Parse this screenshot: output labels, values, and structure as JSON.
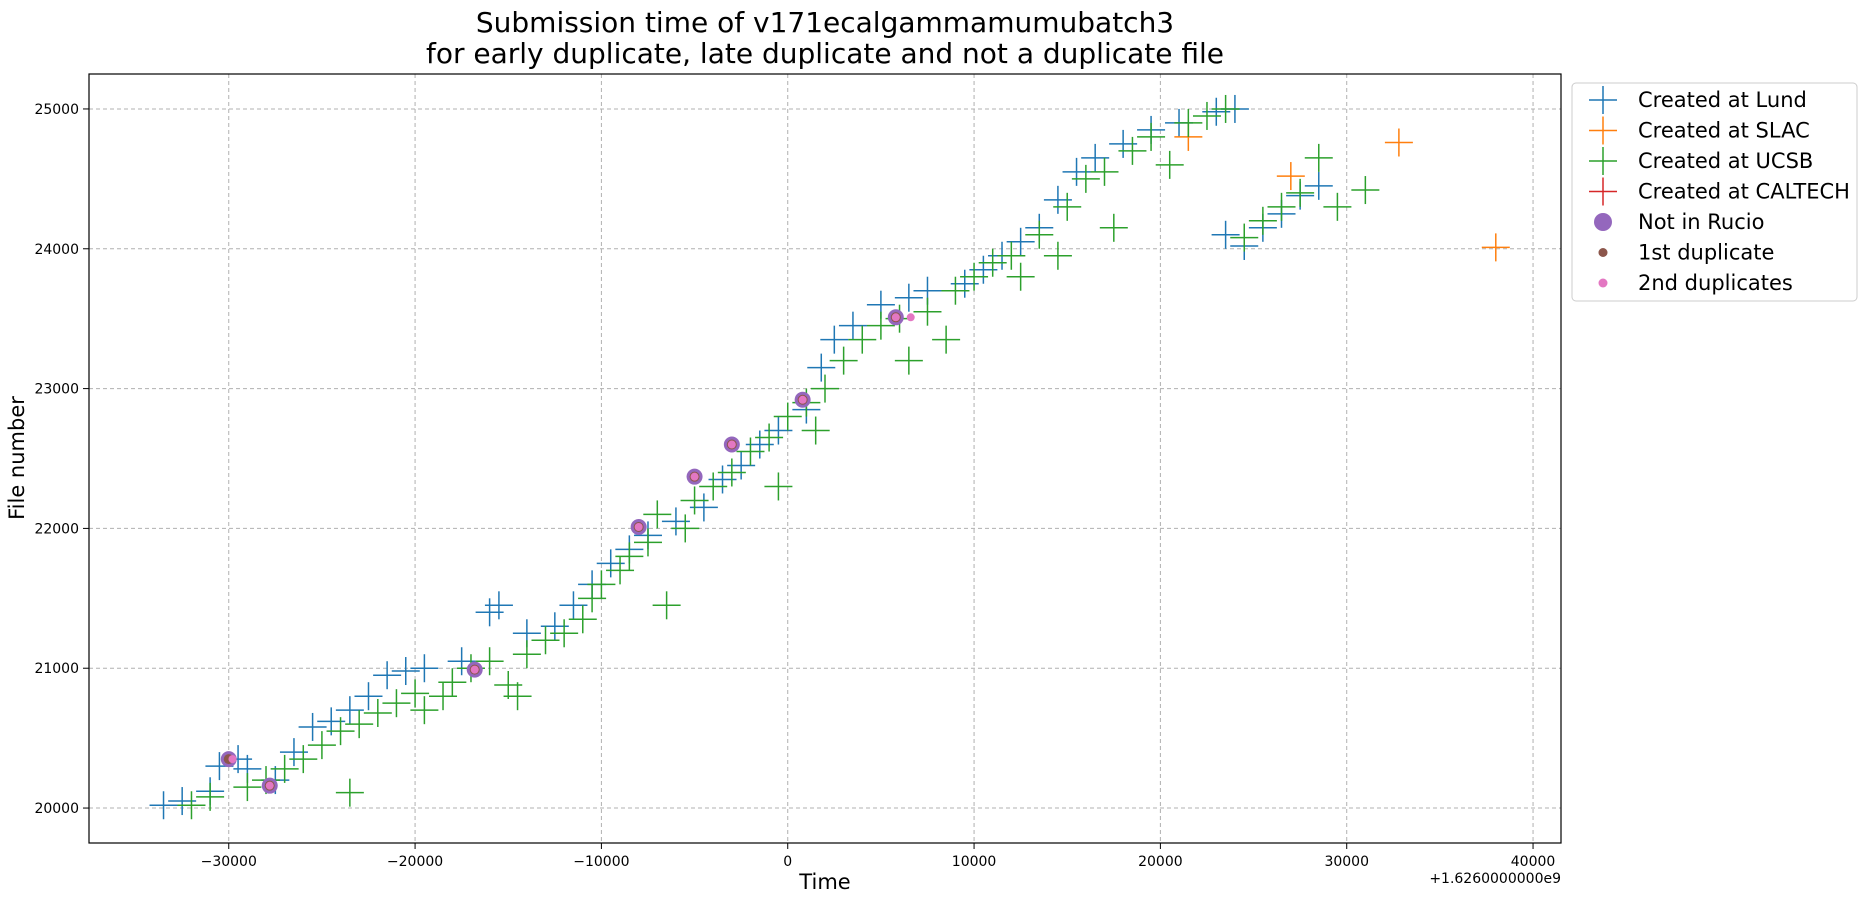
{
  "chart_data": {
    "type": "scatter",
    "title": "Submission time of v171ecalgammamumubatch3",
    "subtitle": "for early duplicate, late duplicate and not a duplicate file",
    "xlabel": "Time",
    "ylabel": "File number",
    "x_offset_text": "+1.6260000000e9",
    "xlim": [
      -37500,
      41500
    ],
    "ylim": [
      19750,
      25250
    ],
    "x_ticks": [
      -30000,
      -20000,
      -10000,
      0,
      10000,
      20000,
      30000,
      40000
    ],
    "x_tick_labels": [
      "−30000",
      "−20000",
      "−10000",
      "0",
      "10000",
      "20000",
      "30000",
      "40000"
    ],
    "y_ticks": [
      20000,
      21000,
      22000,
      23000,
      24000,
      25000
    ],
    "y_tick_labels": [
      "20000",
      "21000",
      "22000",
      "23000",
      "24000",
      "25000"
    ],
    "grid": true,
    "legend_position": "outside-top-right",
    "series": [
      {
        "name": "Created at Lund",
        "marker": "plus",
        "color": "#1f77b4",
        "points": [
          [
            -33500,
            20020
          ],
          [
            -32500,
            20050
          ],
          [
            -31000,
            20120
          ],
          [
            -30500,
            20300
          ],
          [
            -29500,
            20350
          ],
          [
            -29000,
            20280
          ],
          [
            -27500,
            20200
          ],
          [
            -26500,
            20400
          ],
          [
            -25500,
            20580
          ],
          [
            -24500,
            20620
          ],
          [
            -23500,
            20700
          ],
          [
            -22500,
            20800
          ],
          [
            -21500,
            20950
          ],
          [
            -20500,
            20980
          ],
          [
            -19500,
            21000
          ],
          [
            -17500,
            21050
          ],
          [
            -16000,
            21400
          ],
          [
            -15500,
            21450
          ],
          [
            -14000,
            21250
          ],
          [
            -12500,
            21300
          ],
          [
            -11500,
            21450
          ],
          [
            -10500,
            21600
          ],
          [
            -9500,
            21750
          ],
          [
            -8500,
            21850
          ],
          [
            -7500,
            21950
          ],
          [
            -6000,
            22050
          ],
          [
            -4500,
            22150
          ],
          [
            -3500,
            22350
          ],
          [
            -2500,
            22450
          ],
          [
            -1500,
            22600
          ],
          [
            -500,
            22700
          ],
          [
            1000,
            22850
          ],
          [
            1800,
            23150
          ],
          [
            2500,
            23350
          ],
          [
            3500,
            23450
          ],
          [
            5000,
            23600
          ],
          [
            6500,
            23650
          ],
          [
            7500,
            23700
          ],
          [
            9500,
            23750
          ],
          [
            10500,
            23850
          ],
          [
            11500,
            23950
          ],
          [
            12500,
            24050
          ],
          [
            13500,
            24150
          ],
          [
            14500,
            24350
          ],
          [
            15500,
            24550
          ],
          [
            16500,
            24650
          ],
          [
            18000,
            24750
          ],
          [
            19500,
            24850
          ],
          [
            21000,
            24900
          ],
          [
            23000,
            24980
          ],
          [
            24000,
            25000
          ],
          [
            23500,
            24100
          ],
          [
            24500,
            24020
          ],
          [
            25500,
            24150
          ],
          [
            26500,
            24250
          ],
          [
            27500,
            24380
          ],
          [
            28500,
            24450
          ]
        ]
      },
      {
        "name": "Created at SLAC",
        "marker": "plus",
        "color": "#ff7f0e",
        "points": [
          [
            21500,
            24800
          ],
          [
            27000,
            24520
          ],
          [
            32800,
            24760
          ],
          [
            38000,
            24010
          ]
        ]
      },
      {
        "name": "Created at UCSB",
        "marker": "plus",
        "color": "#2ca02c",
        "points": [
          [
            -32000,
            20020
          ],
          [
            -31000,
            20080
          ],
          [
            -29000,
            20150
          ],
          [
            -28000,
            20200
          ],
          [
            -27000,
            20280
          ],
          [
            -26000,
            20350
          ],
          [
            -25000,
            20450
          ],
          [
            -24000,
            20550
          ],
          [
            -23500,
            20110
          ],
          [
            -23000,
            20600
          ],
          [
            -22000,
            20680
          ],
          [
            -21000,
            20750
          ],
          [
            -20000,
            20820
          ],
          [
            -19500,
            20700
          ],
          [
            -18500,
            20800
          ],
          [
            -18000,
            20900
          ],
          [
            -17000,
            21000
          ],
          [
            -16000,
            21050
          ],
          [
            -15000,
            20880
          ],
          [
            -14500,
            20800
          ],
          [
            -14000,
            21100
          ],
          [
            -13000,
            21200
          ],
          [
            -12000,
            21250
          ],
          [
            -11000,
            21350
          ],
          [
            -10500,
            21500
          ],
          [
            -10000,
            21600
          ],
          [
            -9000,
            21700
          ],
          [
            -8500,
            21800
          ],
          [
            -7500,
            21900
          ],
          [
            -7000,
            22100
          ],
          [
            -6500,
            21450
          ],
          [
            -5500,
            22000
          ],
          [
            -5000,
            22200
          ],
          [
            -4000,
            22300
          ],
          [
            -3000,
            22400
          ],
          [
            -2000,
            22550
          ],
          [
            -1000,
            22650
          ],
          [
            -500,
            22300
          ],
          [
            0,
            22800
          ],
          [
            1000,
            22900
          ],
          [
            1500,
            22700
          ],
          [
            2000,
            23000
          ],
          [
            3000,
            23200
          ],
          [
            4000,
            23350
          ],
          [
            5000,
            23450
          ],
          [
            6000,
            23500
          ],
          [
            6500,
            23200
          ],
          [
            7500,
            23550
          ],
          [
            8500,
            23350
          ],
          [
            9000,
            23700
          ],
          [
            10000,
            23800
          ],
          [
            11000,
            23900
          ],
          [
            12000,
            23950
          ],
          [
            12500,
            23800
          ],
          [
            13500,
            24100
          ],
          [
            14500,
            23950
          ],
          [
            15000,
            24300
          ],
          [
            16000,
            24500
          ],
          [
            17000,
            24550
          ],
          [
            17500,
            24150
          ],
          [
            18500,
            24700
          ],
          [
            19500,
            24800
          ],
          [
            20500,
            24600
          ],
          [
            21500,
            24900
          ],
          [
            22500,
            24950
          ],
          [
            23500,
            25000
          ],
          [
            24500,
            24080
          ],
          [
            25500,
            24200
          ],
          [
            26500,
            24300
          ],
          [
            27500,
            24400
          ],
          [
            28500,
            24650
          ],
          [
            29500,
            24300
          ],
          [
            31000,
            24420
          ]
        ]
      },
      {
        "name": "Created at CALTECH",
        "marker": "plus",
        "color": "#d62728",
        "points": []
      },
      {
        "name": "Not in Rucio",
        "marker": "circle-large",
        "color": "#9467bd",
        "points": [
          [
            -30000,
            20350
          ],
          [
            -27800,
            20160
          ],
          [
            -16800,
            20990
          ],
          [
            -8000,
            22010
          ],
          [
            -5000,
            22370
          ],
          [
            -3000,
            22600
          ],
          [
            800,
            22920
          ],
          [
            5800,
            23510
          ]
        ]
      },
      {
        "name": "1st duplicate",
        "marker": "circle-medium",
        "color": "#8c564b",
        "points": [
          [
            -30000,
            20350
          ],
          [
            -27800,
            20160
          ],
          [
            -16800,
            20990
          ],
          [
            -8000,
            22010
          ],
          [
            -5000,
            22370
          ],
          [
            -3000,
            22600
          ],
          [
            800,
            22920
          ],
          [
            5800,
            23510
          ]
        ]
      },
      {
        "name": "2nd duplicates",
        "marker": "circle-small",
        "color": "#e377c2",
        "points": [
          [
            -29800,
            20350
          ],
          [
            -27800,
            20160
          ],
          [
            -16800,
            20990
          ],
          [
            -8000,
            22010
          ],
          [
            -5000,
            22370
          ],
          [
            -3000,
            22600
          ],
          [
            800,
            22920
          ],
          [
            5800,
            23510
          ],
          [
            6600,
            23510
          ]
        ]
      }
    ]
  }
}
